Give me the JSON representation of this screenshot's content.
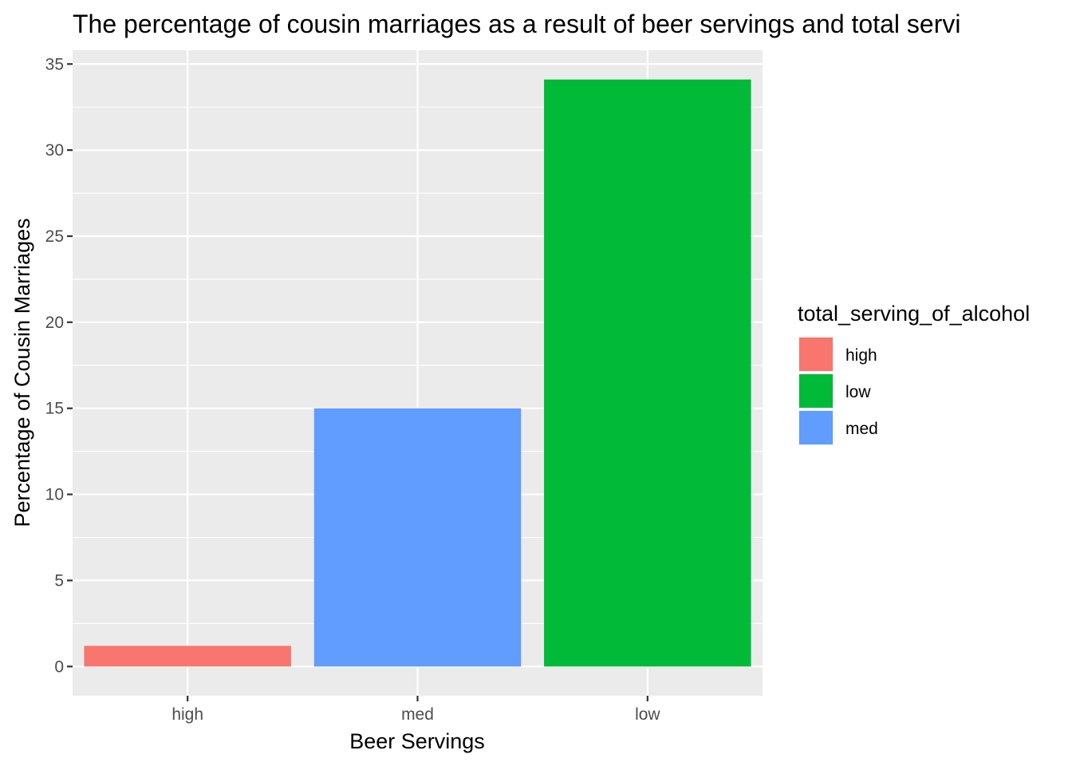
{
  "chart_data": {
    "type": "bar",
    "title": "The percentage of cousin marriages as a result of beer servings and total servi",
    "xlabel": "Beer Servings",
    "ylabel": "Percentage of Cousin Marriages",
    "categories": [
      "high",
      "med",
      "low"
    ],
    "values": [
      1.2,
      15.0,
      34.1
    ],
    "fill_groups": [
      "high",
      "med",
      "low"
    ],
    "ylim": [
      -1.7,
      35.8
    ],
    "y_ticks": [
      0,
      5,
      10,
      15,
      20,
      25,
      30,
      35
    ],
    "grid": true,
    "legend": {
      "title": "total_serving_of_alcohol",
      "placement": "right",
      "entries": [
        {
          "label": "high",
          "color": "#F8766D"
        },
        {
          "label": "low",
          "color": "#00BA38"
        },
        {
          "label": "med",
          "color": "#619CFF"
        }
      ]
    },
    "colors": {
      "high": "#F8766D",
      "low": "#00BA38",
      "med": "#619CFF",
      "panel_background": "#EBEBEB",
      "grid": "#FFFFFF"
    }
  }
}
